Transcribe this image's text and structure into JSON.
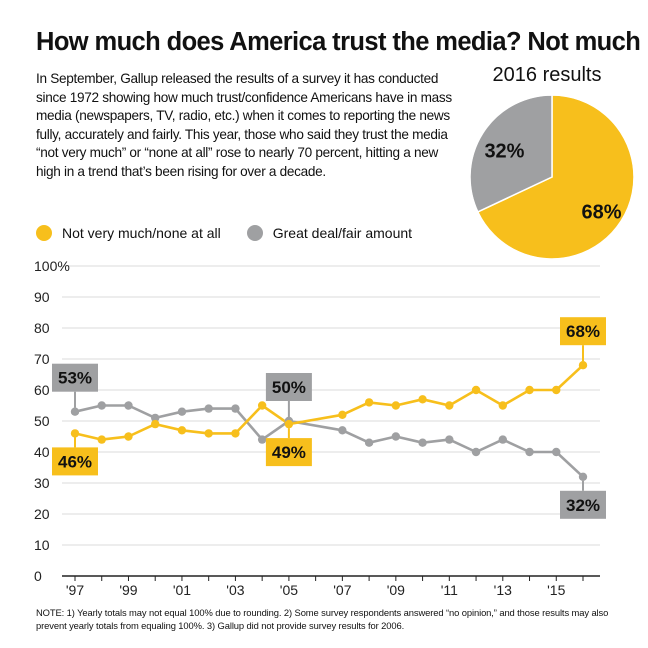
{
  "title": "How much does America trust the media? Not much",
  "intro": "In September, Gallup released the results of a survey it has conducted since 1972 showing how much trust/confidence Americans have in mass media (newspapers, TV, radio, etc.) when it comes to reporting the news fully, accurately and fairly. This year, those who said they trust the media “not very much” or “none at all” rose to nearly 70 percent, hitting a new high in a trend that’s been rising for over a decade.",
  "note": "NOTE: 1) Yearly totals may not equal 100% due to rounding. 2) Some survey respondents answered “no opinion,” and those results may also prevent yearly totals from equaling 100%. 3) Gallup did not provide survey results for 2006.",
  "colors": {
    "yellow": "#f7bf1c",
    "gray": "#9fa0a2",
    "axis": "#222222",
    "grid": "#cfcfcf"
  },
  "chart_data": [
    {
      "type": "pie",
      "title": "2016 results",
      "slices": [
        {
          "label": "68%",
          "value": 68,
          "series": "Not very much/none at all",
          "color": "#f7bf1c"
        },
        {
          "label": "32%",
          "value": 32,
          "series": "Great deal/fair amount",
          "color": "#9fa0a2"
        }
      ]
    },
    {
      "type": "line",
      "legend_placement": "top",
      "ylim": [
        0,
        100
      ],
      "yticks": [
        0,
        10,
        20,
        30,
        40,
        50,
        60,
        70,
        80,
        90,
        100
      ],
      "ytick_labels": [
        "0",
        "10",
        "20",
        "30",
        "40",
        "50",
        "60",
        "70",
        "80",
        "90",
        "100%"
      ],
      "xlim": [
        1997,
        2016
      ],
      "xticks": [
        1997,
        1999,
        2001,
        2003,
        2005,
        2007,
        2009,
        2011,
        2013,
        2015
      ],
      "xtick_labels": [
        "'97",
        "'99",
        "'01",
        "'03",
        "'05",
        "'07",
        "'09",
        "'11",
        "'13",
        "'15"
      ],
      "grid": true,
      "series": [
        {
          "name": "Not very much/none at all",
          "color": "#f7bf1c",
          "x": [
            1997,
            1998,
            1999,
            2000,
            2001,
            2002,
            2003,
            2004,
            2005,
            2007,
            2008,
            2009,
            2010,
            2011,
            2012,
            2013,
            2014,
            2015,
            2016
          ],
          "y": [
            46,
            44,
            45,
            49,
            47,
            46,
            46,
            55,
            49,
            52,
            56,
            55,
            57,
            55,
            60,
            55,
            60,
            60,
            68
          ]
        },
        {
          "name": "Great deal/fair amount",
          "color": "#9fa0a2",
          "x": [
            1997,
            1998,
            1999,
            2000,
            2001,
            2002,
            2003,
            2004,
            2005,
            2007,
            2008,
            2009,
            2010,
            2011,
            2012,
            2013,
            2014,
            2015,
            2016
          ],
          "y": [
            53,
            55,
            55,
            51,
            53,
            54,
            54,
            44,
            50,
            47,
            43,
            45,
            43,
            44,
            40,
            44,
            40,
            40,
            32
          ]
        }
      ],
      "annotations": [
        {
          "text": "53%",
          "x": 1997,
          "y": 53,
          "series": "Great deal/fair amount",
          "placement": "above"
        },
        {
          "text": "46%",
          "x": 1997,
          "y": 46,
          "series": "Not very much/none at all",
          "placement": "below"
        },
        {
          "text": "50%",
          "x": 2005,
          "y": 50,
          "series": "Great deal/fair amount",
          "placement": "above"
        },
        {
          "text": "49%",
          "x": 2005,
          "y": 49,
          "series": "Not very much/none at all",
          "placement": "below"
        },
        {
          "text": "68%",
          "x": 2016,
          "y": 68,
          "series": "Not very much/none at all",
          "placement": "above"
        },
        {
          "text": "32%",
          "x": 2016,
          "y": 32,
          "series": "Great deal/fair amount",
          "placement": "below"
        }
      ]
    }
  ]
}
